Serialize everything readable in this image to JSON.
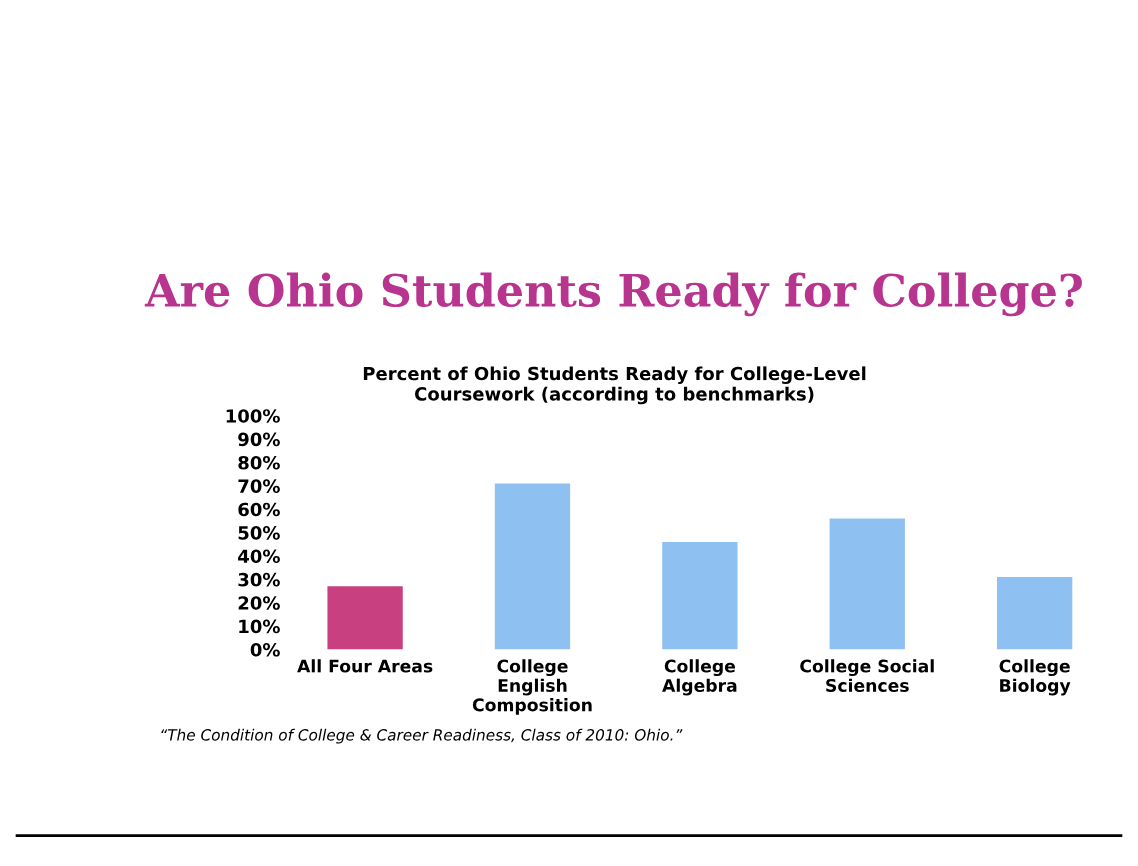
{
  "chart_data": {
    "type": "bar",
    "title": "Are Ohio Students Ready for College?",
    "subtitle": "Percent of Ohio Students Ready for College-Level\nCoursework (according to benchmarks)",
    "categories": [
      "All Four Areas",
      "College\nEnglish\nComposition",
      "College\nAlgebra",
      "College Social\nSciences",
      "College\nBiology"
    ],
    "values": [
      27,
      71,
      46,
      56,
      31
    ],
    "colors": [
      "#c8407f",
      "#8fc0f2",
      "#8fc0f2",
      "#8fc0f2",
      "#8fc0f2"
    ],
    "ylim": [
      0,
      100
    ],
    "yticks": [
      {
        "value": 0,
        "label": "0%"
      },
      {
        "value": 10,
        "label": "10%"
      },
      {
        "value": 20,
        "label": "20%"
      },
      {
        "value": 30,
        "label": "30%"
      },
      {
        "value": 40,
        "label": "40%"
      },
      {
        "value": 50,
        "label": "50%"
      },
      {
        "value": 60,
        "label": "60%"
      },
      {
        "value": 70,
        "label": "70%"
      },
      {
        "value": 80,
        "label": "80%"
      },
      {
        "value": 90,
        "label": "90%"
      },
      {
        "value": 100,
        "label": "100%"
      }
    ],
    "annotations": [
      "“The Condition of College & Career Readiness, Class of 2010: Ohio.”"
    ]
  }
}
